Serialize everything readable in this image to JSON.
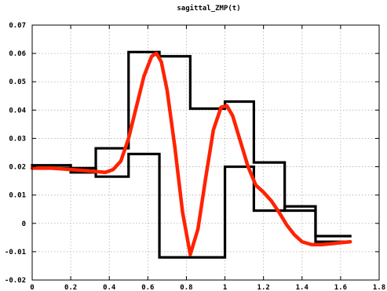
{
  "chart_data": {
    "type": "line",
    "title": "sagittal_ZMP(t)",
    "xlabel": "",
    "ylabel": "",
    "xlim": [
      0,
      1.8
    ],
    "ylim": [
      -0.02,
      0.07
    ],
    "grid": true,
    "x_ticks": [
      0,
      0.2,
      0.4,
      0.6,
      0.8,
      1,
      1.2,
      1.4,
      1.6,
      1.8
    ],
    "x_tick_labels": [
      "0",
      "0.2",
      "0.4",
      "0.6",
      "0.8",
      "1",
      "1.2",
      "1.4",
      "1.6",
      "1.8"
    ],
    "y_ticks": [
      -0.02,
      -0.01,
      0,
      0.01,
      0.02,
      0.03,
      0.04,
      0.05,
      0.06,
      0.07
    ],
    "y_tick_labels": [
      "-0.02",
      "-0.01",
      "0",
      "0.01",
      "0.02",
      "0.03",
      "0.04",
      "0.05",
      "0.06",
      "0.07"
    ],
    "series": [
      {
        "color": "#000000",
        "step": true,
        "x": [
          0,
          0.2,
          0.2,
          0.33,
          0.33,
          0.5,
          0.5,
          0.66,
          0.66,
          0.82,
          0.82,
          1.0,
          1.0,
          1.15,
          1.15,
          1.31,
          1.31,
          1.47,
          1.47,
          1.65
        ],
        "y": [
          0.0205,
          0.0205,
          0.018,
          0.018,
          0.0265,
          0.0265,
          0.0605,
          0.0605,
          0.059,
          0.059,
          0.0405,
          0.0405,
          0.043,
          0.043,
          0.0215,
          0.0215,
          0.0045,
          0.0045,
          -0.0045,
          -0.0045
        ]
      },
      {
        "color": "#000000",
        "step": true,
        "x": [
          0,
          0.2,
          0.2,
          0.33,
          0.33,
          0.5,
          0.5,
          0.66,
          0.66,
          0.82,
          0.82,
          1.0,
          1.0,
          1.15,
          1.15,
          1.31,
          1.31,
          1.47,
          1.47,
          1.65
        ],
        "y": [
          0.0195,
          0.0195,
          0.0195,
          0.0195,
          0.0165,
          0.0165,
          0.0245,
          0.0245,
          -0.012,
          -0.012,
          -0.012,
          -0.012,
          0.02,
          0.02,
          0.0045,
          0.0045,
          0.006,
          0.006,
          -0.0065,
          -0.0065
        ]
      },
      {
        "color": "#ff2200",
        "step": false,
        "x": [
          0,
          0.1,
          0.2,
          0.3,
          0.38,
          0.42,
          0.46,
          0.5,
          0.54,
          0.58,
          0.62,
          0.645,
          0.67,
          0.7,
          0.74,
          0.78,
          0.82,
          0.86,
          0.9,
          0.94,
          0.98,
          1.01,
          1.04,
          1.08,
          1.12,
          1.16,
          1.2,
          1.24,
          1.28,
          1.32,
          1.36,
          1.4,
          1.45,
          1.5,
          1.55,
          1.6,
          1.65
        ],
        "y": [
          0.0195,
          0.0195,
          0.019,
          0.0185,
          0.018,
          0.019,
          0.022,
          0.03,
          0.041,
          0.052,
          0.059,
          0.06,
          0.057,
          0.047,
          0.027,
          0.004,
          -0.011,
          -0.002,
          0.016,
          0.033,
          0.041,
          0.0415,
          0.038,
          0.029,
          0.02,
          0.0135,
          0.011,
          0.008,
          0.004,
          -0.0005,
          -0.004,
          -0.0065,
          -0.0075,
          -0.0075,
          -0.0072,
          -0.0068,
          -0.0065
        ]
      }
    ]
  }
}
